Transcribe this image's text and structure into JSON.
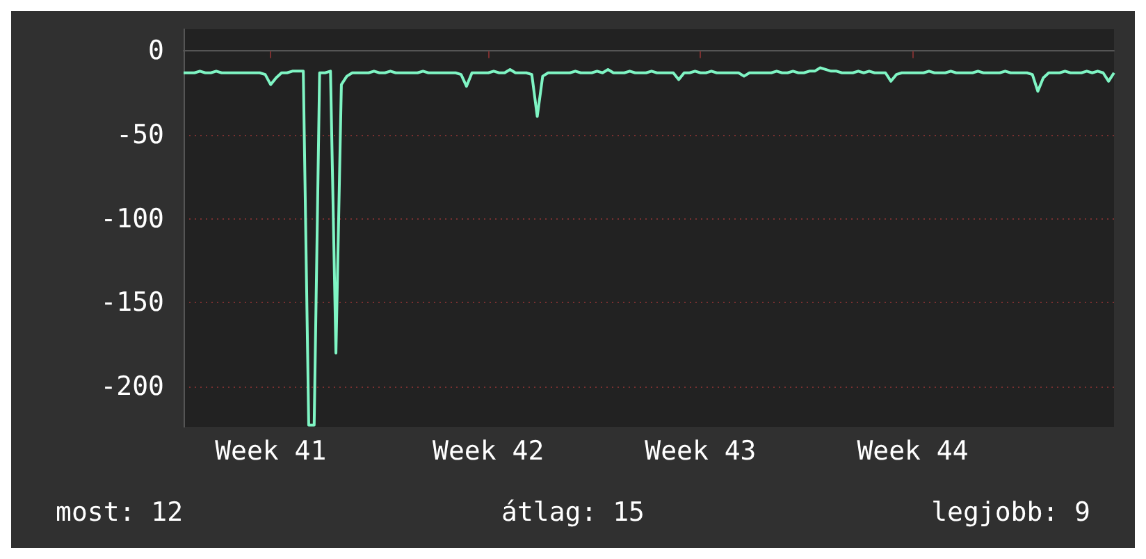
{
  "chart_data": {
    "type": "line",
    "categories": [
      null,
      null,
      null,
      null,
      null,
      null,
      null,
      null,
      null,
      null,
      null,
      null,
      null,
      null,
      null,
      null,
      "Week 41",
      null,
      null,
      null,
      null,
      null,
      null,
      null,
      null,
      null,
      null,
      null,
      null,
      null,
      null,
      null,
      null,
      null,
      null,
      null,
      null,
      null,
      null,
      null,
      null,
      null,
      null,
      null,
      null,
      null,
      null,
      null,
      null,
      null,
      null,
      null,
      null,
      null,
      null,
      null,
      "Week 42",
      null,
      null,
      null,
      null,
      null,
      null,
      null,
      null,
      null,
      null,
      null,
      null,
      null,
      null,
      null,
      null,
      null,
      null,
      null,
      null,
      null,
      null,
      null,
      null,
      null,
      null,
      null,
      null,
      null,
      null,
      null,
      null,
      null,
      null,
      null,
      null,
      null,
      null,
      "Week 43",
      null,
      null,
      null,
      null,
      null,
      null,
      null,
      null,
      null,
      null,
      null,
      null,
      null,
      null,
      null,
      null,
      null,
      null,
      null,
      null,
      null,
      null,
      null,
      null,
      null,
      null,
      null,
      null,
      null,
      null,
      null,
      null,
      null,
      null,
      null,
      null,
      null,
      null,
      "Week 44",
      null,
      null,
      null,
      null,
      null,
      null,
      null,
      null,
      null,
      null,
      null,
      null,
      null,
      null,
      null,
      null,
      null,
      null,
      null,
      null,
      null,
      null,
      null,
      null,
      null,
      null,
      null,
      null,
      null,
      null,
      null,
      null,
      null,
      null,
      null,
      null,
      null
    ],
    "series": [
      {
        "color": "#7ff5c4",
        "values": [
          -13,
          -13,
          -13,
          -12,
          -13,
          -13,
          -12,
          -13,
          -13,
          -13,
          -13,
          -13,
          -13,
          -13,
          -13,
          -14,
          -20,
          -16,
          -13,
          -13,
          -12,
          -12,
          -12,
          -223,
          -223,
          -13,
          -13,
          -12,
          -180,
          -20,
          -15,
          -13,
          -13,
          -13,
          -13,
          -12,
          -13,
          -13,
          -12,
          -13,
          -13,
          -13,
          -13,
          -13,
          -12,
          -13,
          -13,
          -13,
          -13,
          -13,
          -13,
          -14,
          -21,
          -13,
          -13,
          -13,
          -13,
          -12,
          -13,
          -13,
          -11,
          -13,
          -13,
          -13,
          -14,
          -39,
          -15,
          -13,
          -13,
          -13,
          -13,
          -13,
          -12,
          -13,
          -13,
          -13,
          -12,
          -13,
          -11,
          -13,
          -13,
          -13,
          -12,
          -13,
          -13,
          -13,
          -12,
          -13,
          -13,
          -13,
          -13,
          -17,
          -13,
          -13,
          -12,
          -13,
          -13,
          -12,
          -13,
          -13,
          -13,
          -13,
          -13,
          -15,
          -13,
          -13,
          -13,
          -13,
          -13,
          -12,
          -13,
          -13,
          -12,
          -13,
          -13,
          -12,
          -12,
          -10,
          -11,
          -12,
          -12,
          -13,
          -13,
          -13,
          -12,
          -13,
          -12,
          -13,
          -13,
          -13,
          -18,
          -14,
          -13,
          -13,
          -13,
          -13,
          -13,
          -12,
          -13,
          -13,
          -13,
          -12,
          -13,
          -13,
          -13,
          -13,
          -12,
          -13,
          -13,
          -13,
          -13,
          -12,
          -13,
          -13,
          -13,
          -13,
          -14,
          -24,
          -16,
          -13,
          -13,
          -13,
          -12,
          -13,
          -13,
          -13,
          -12,
          -13,
          -12,
          -13,
          -18,
          -13
        ]
      }
    ],
    "ylim": [
      -224,
      13
    ],
    "yticks": [
      0,
      -50,
      -100,
      -150,
      -200
    ],
    "grid": "y",
    "marker": "none",
    "line_style": "solid",
    "annotations": [
      "most: 12",
      "átlag: 15",
      "legjobb: 9"
    ]
  }
}
